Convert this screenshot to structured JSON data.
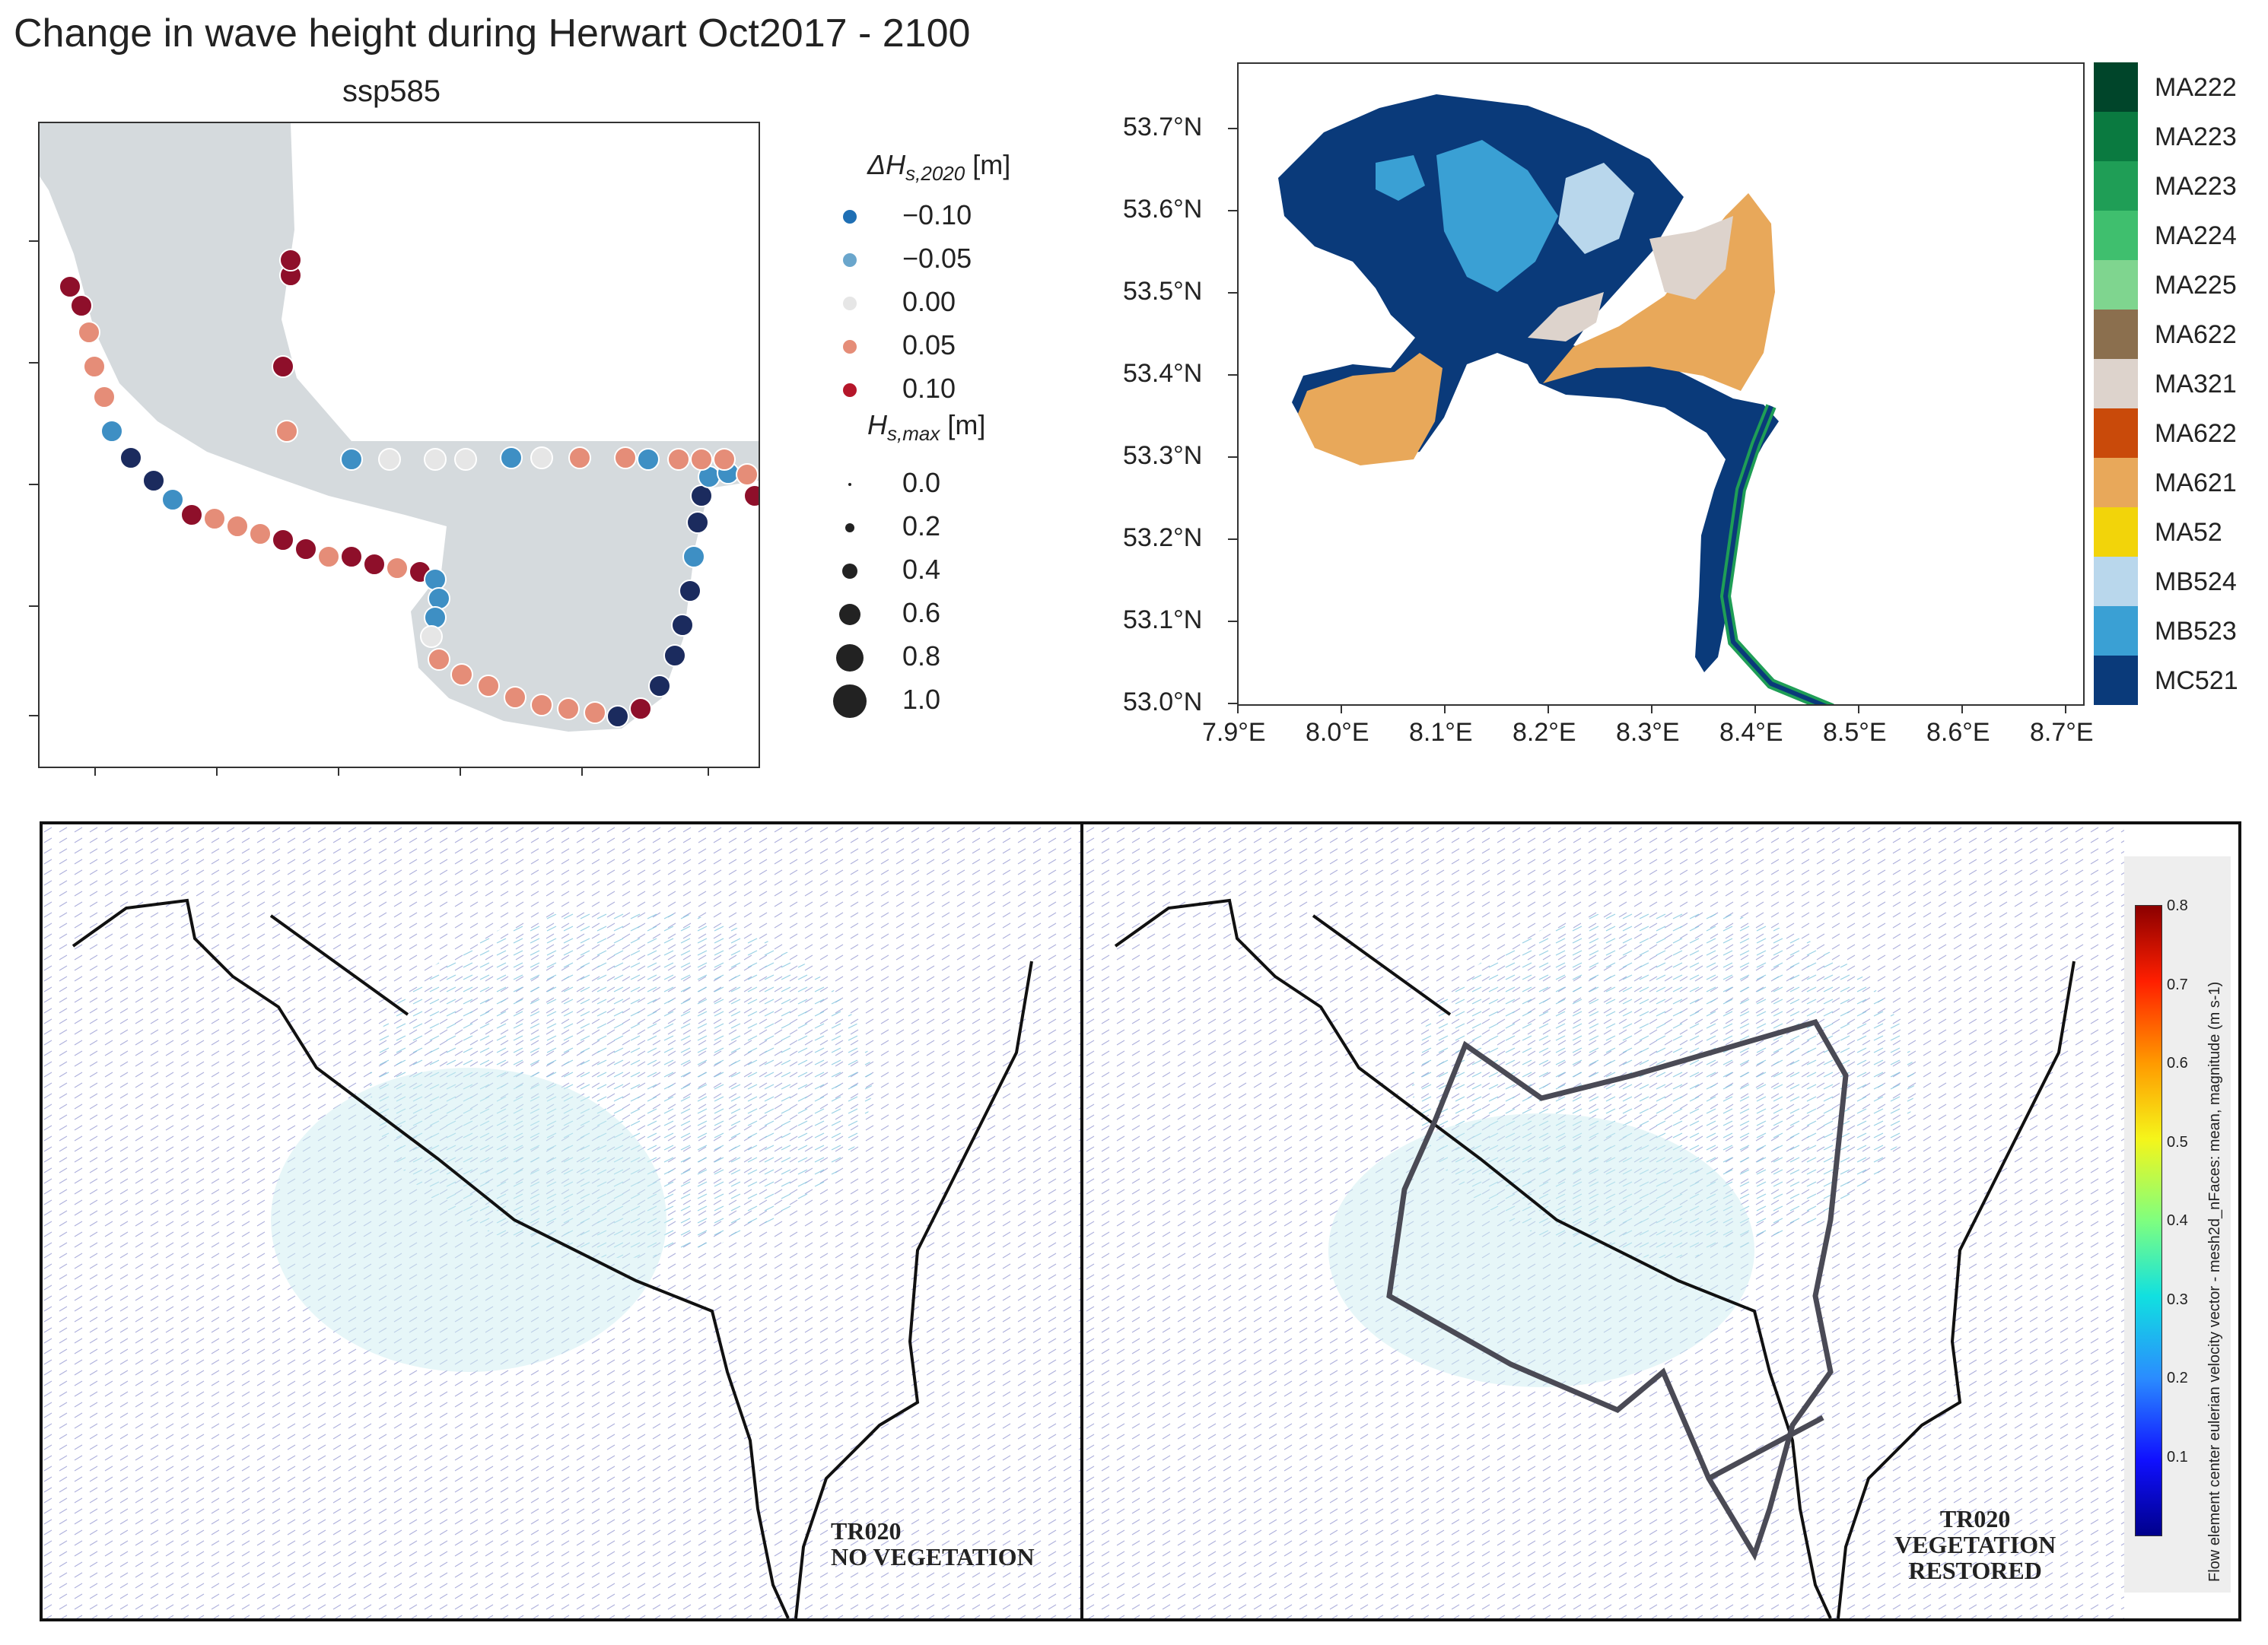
{
  "title": "Change in wave height during Herwart Oct2017 - 2100",
  "panel_a": {
    "subtitle": "ssp585",
    "legend": {
      "color_title": "ΔH",
      "color_title_sub": "s,2020",
      "color_title_unit": "[m]",
      "color_entries": [
        {
          "label": "−0.10",
          "color": "#1f6fb4"
        },
        {
          "label": "−0.05",
          "color": "#6aa6cc"
        },
        {
          "label": "0.00",
          "color": "#e6e6e6"
        },
        {
          "label": "0.05",
          "color": "#e58d78"
        },
        {
          "label": "0.10",
          "color": "#b5162a"
        }
      ],
      "size_title": "H",
      "size_title_sub": "s,max",
      "size_title_unit": "[m]",
      "size_entries": [
        {
          "label": "0.0",
          "value": 0.0
        },
        {
          "label": "0.2",
          "value": 0.2
        },
        {
          "label": "0.4",
          "value": 0.4
        },
        {
          "label": "0.6",
          "value": 0.6
        },
        {
          "label": "0.8",
          "value": 0.8
        },
        {
          "label": "1.0",
          "value": 1.0
        }
      ]
    }
  },
  "panel_b": {
    "x_ticks": [
      "7.9°E",
      "8.0°E",
      "8.1°E",
      "8.2°E",
      "8.3°E",
      "8.4°E",
      "8.5°E",
      "8.6°E",
      "8.7°E"
    ],
    "y_ticks": [
      "53.7°N",
      "53.6°N",
      "53.5°N",
      "53.4°N",
      "53.3°N",
      "53.2°N",
      "53.1°N",
      "53.0°N"
    ],
    "colorbar": [
      {
        "label": "MA222",
        "color": "#00452a"
      },
      {
        "label": "MA223",
        "color": "#0a7a40"
      },
      {
        "label": "MA223",
        "color": "#1f9e56"
      },
      {
        "label": "MA224",
        "color": "#3fbf6e"
      },
      {
        "label": "MA225",
        "color": "#7fd58f"
      },
      {
        "label": "MA622",
        "color": "#8b6f4e"
      },
      {
        "label": "MA321",
        "color": "#ddd3cc"
      },
      {
        "label": "MA622",
        "color": "#c94a0a"
      },
      {
        "label": "MA621",
        "color": "#e8a85a"
      },
      {
        "label": "MA52",
        "color": "#f2d40a"
      },
      {
        "label": "MB524",
        "color": "#b9d7ec"
      },
      {
        "label": "MB523",
        "color": "#3aa0d4"
      },
      {
        "label": "MC521",
        "color": "#0a3a7a"
      }
    ]
  },
  "panel_c": {
    "left_label": [
      "TR020",
      "NO VEGETATION"
    ],
    "right_label": [
      "TR020",
      "VEGETATION",
      "RESTORED"
    ],
    "colorbar_title": "Flow element center eulerian velocity vector - mesh2d_nFaces: mean, magnitude (m s-1)",
    "colorbar_ticks": [
      "0.8",
      "0.7",
      "0.6",
      "0.5",
      "0.4",
      "0.3",
      "0.2",
      "0.1"
    ]
  }
}
